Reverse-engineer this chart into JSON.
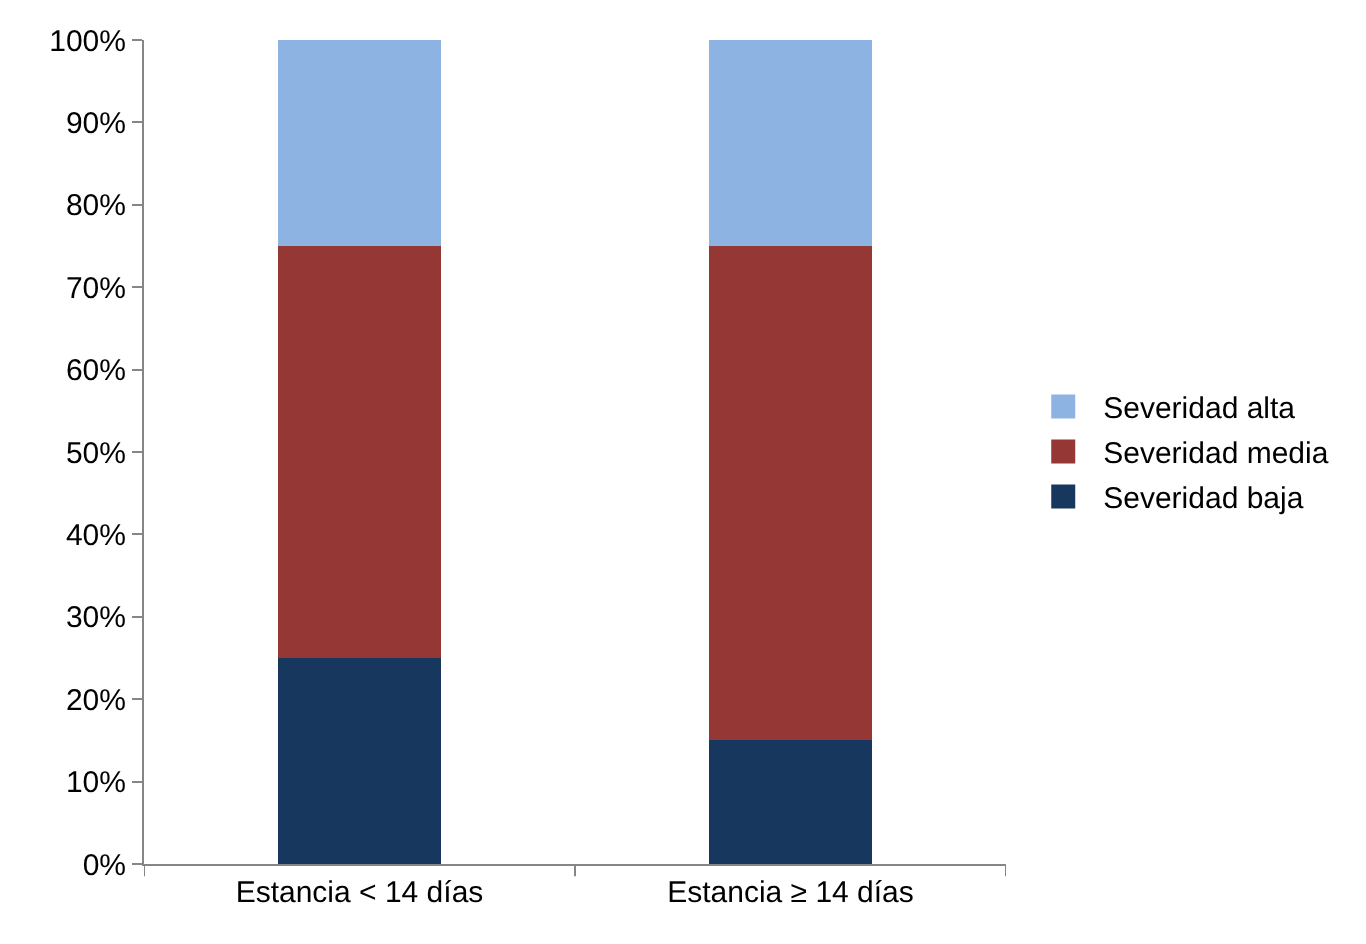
{
  "chart_data": {
    "type": "bar",
    "stacked": true,
    "categories": [
      "Estancia < 14 días",
      "Estancia ≥ 14 días"
    ],
    "series": [
      {
        "name": "Severidad baja",
        "color": "#17375e",
        "values": [
          25,
          15
        ]
      },
      {
        "name": "Severidad media",
        "color": "#953735",
        "values": [
          50,
          60
        ]
      },
      {
        "name": "Severidad alta",
        "color": "#8db3e2",
        "values": [
          25,
          25
        ]
      }
    ],
    "ylim": [
      0,
      100
    ],
    "yticks": [
      {
        "value": 0,
        "label": "0%"
      },
      {
        "value": 10,
        "label": "10%"
      },
      {
        "value": 20,
        "label": "20%"
      },
      {
        "value": 30,
        "label": "30%"
      },
      {
        "value": 40,
        "label": "40%"
      },
      {
        "value": 50,
        "label": "50%"
      },
      {
        "value": 60,
        "label": "60%"
      },
      {
        "value": 70,
        "label": "70%"
      },
      {
        "value": 80,
        "label": "80%"
      },
      {
        "value": 90,
        "label": "90%"
      },
      {
        "value": 100,
        "label": "100%"
      }
    ],
    "grid": false,
    "legend": "right"
  }
}
